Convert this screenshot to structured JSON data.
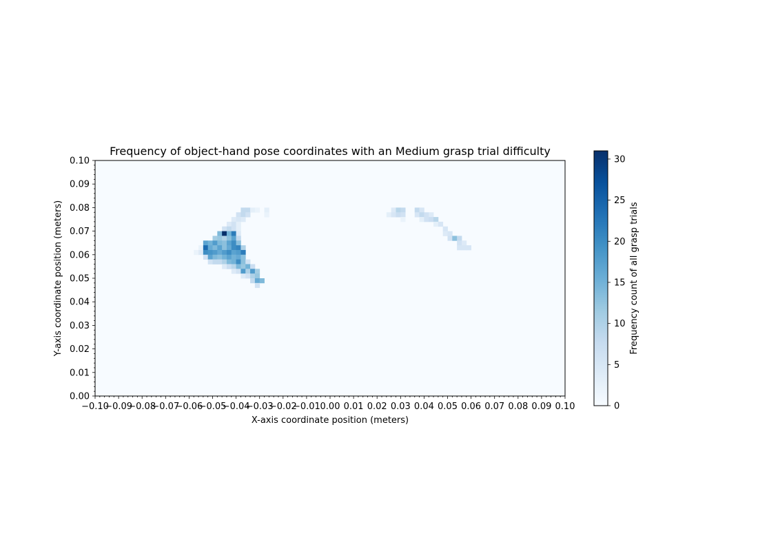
{
  "chart_data": {
    "type": "heatmap",
    "title": "Frequency of object-hand pose coordinates with an Medium grasp trial difficulty",
    "xlabel": "X-axis coordinate position (meters)",
    "ylabel": "Y-axis coordinate position (meters)",
    "xlim": [
      -0.1,
      0.1
    ],
    "ylim": [
      0.0,
      0.1
    ],
    "bin_size": 0.002,
    "x_ticks": [
      "−0.10",
      "−0.09",
      "−0.08",
      "−0.07",
      "−0.06",
      "−0.05",
      "−0.04",
      "−0.03",
      "−0.02",
      "−0.01",
      "0.00",
      "0.01",
      "0.02",
      "0.03",
      "0.04",
      "0.05",
      "0.06",
      "0.07",
      "0.08",
      "0.09",
      "0.10"
    ],
    "y_ticks": [
      "0.00",
      "0.01",
      "0.02",
      "0.03",
      "0.04",
      "0.05",
      "0.06",
      "0.07",
      "0.08",
      "0.09",
      "0.10"
    ],
    "colorbar": {
      "label": "Frequency count of all grasp trials",
      "range": [
        0,
        31
      ],
      "ticks": [
        "0",
        "5",
        "10",
        "15",
        "20",
        "25",
        "30"
      ],
      "colormap": "Blues"
    },
    "cells": [
      [
        -0.038,
        0.078,
        8
      ],
      [
        -0.036,
        0.078,
        8
      ],
      [
        -0.034,
        0.078,
        3
      ],
      [
        -0.032,
        0.078,
        2
      ],
      [
        -0.028,
        0.078,
        3
      ],
      [
        -0.04,
        0.076,
        6
      ],
      [
        -0.038,
        0.076,
        8
      ],
      [
        -0.036,
        0.076,
        6
      ],
      [
        -0.028,
        0.076,
        2
      ],
      [
        -0.042,
        0.074,
        4
      ],
      [
        -0.04,
        0.074,
        5
      ],
      [
        -0.038,
        0.074,
        4
      ],
      [
        -0.044,
        0.072,
        4
      ],
      [
        -0.042,
        0.072,
        6
      ],
      [
        -0.04,
        0.072,
        3
      ],
      [
        -0.046,
        0.07,
        6
      ],
      [
        -0.044,
        0.07,
        8
      ],
      [
        -0.042,
        0.07,
        6
      ],
      [
        -0.04,
        0.07,
        3
      ],
      [
        -0.048,
        0.068,
        14
      ],
      [
        -0.046,
        0.068,
        31
      ],
      [
        -0.044,
        0.068,
        15
      ],
      [
        -0.042,
        0.068,
        22
      ],
      [
        -0.04,
        0.068,
        4
      ],
      [
        -0.05,
        0.066,
        11
      ],
      [
        -0.048,
        0.066,
        12
      ],
      [
        -0.046,
        0.066,
        10
      ],
      [
        -0.044,
        0.066,
        13
      ],
      [
        -0.042,
        0.066,
        17
      ],
      [
        -0.04,
        0.066,
        8
      ],
      [
        -0.054,
        0.064,
        17
      ],
      [
        -0.052,
        0.064,
        15
      ],
      [
        -0.05,
        0.064,
        18
      ],
      [
        -0.048,
        0.064,
        14
      ],
      [
        -0.046,
        0.064,
        13
      ],
      [
        -0.044,
        0.064,
        17
      ],
      [
        -0.042,
        0.064,
        20
      ],
      [
        -0.04,
        0.064,
        13
      ],
      [
        -0.056,
        0.062,
        2
      ],
      [
        -0.054,
        0.062,
        24
      ],
      [
        -0.052,
        0.062,
        16
      ],
      [
        -0.05,
        0.062,
        14
      ],
      [
        -0.048,
        0.062,
        17
      ],
      [
        -0.046,
        0.062,
        13
      ],
      [
        -0.044,
        0.062,
        16
      ],
      [
        -0.042,
        0.062,
        20
      ],
      [
        -0.04,
        0.062,
        21
      ],
      [
        -0.038,
        0.062,
        10
      ],
      [
        -0.058,
        0.06,
        2
      ],
      [
        -0.056,
        0.06,
        4
      ],
      [
        -0.054,
        0.06,
        20
      ],
      [
        -0.052,
        0.06,
        19
      ],
      [
        -0.05,
        0.06,
        18
      ],
      [
        -0.048,
        0.06,
        16
      ],
      [
        -0.046,
        0.06,
        18
      ],
      [
        -0.044,
        0.06,
        20
      ],
      [
        -0.042,
        0.06,
        17
      ],
      [
        -0.04,
        0.06,
        18
      ],
      [
        -0.038,
        0.06,
        22
      ],
      [
        -0.054,
        0.058,
        6
      ],
      [
        -0.052,
        0.058,
        17
      ],
      [
        -0.05,
        0.058,
        14
      ],
      [
        -0.048,
        0.058,
        13
      ],
      [
        -0.046,
        0.058,
        15
      ],
      [
        -0.044,
        0.058,
        17
      ],
      [
        -0.042,
        0.058,
        15
      ],
      [
        -0.04,
        0.058,
        16
      ],
      [
        -0.038,
        0.058,
        13
      ],
      [
        -0.052,
        0.056,
        6
      ],
      [
        -0.05,
        0.056,
        8
      ],
      [
        -0.048,
        0.056,
        8
      ],
      [
        -0.046,
        0.056,
        10
      ],
      [
        -0.044,
        0.056,
        14
      ],
      [
        -0.042,
        0.056,
        15
      ],
      [
        -0.04,
        0.056,
        20
      ],
      [
        -0.038,
        0.056,
        13
      ],
      [
        -0.036,
        0.056,
        6
      ],
      [
        -0.046,
        0.054,
        4
      ],
      [
        -0.044,
        0.054,
        7
      ],
      [
        -0.042,
        0.054,
        9
      ],
      [
        -0.04,
        0.054,
        14
      ],
      [
        -0.038,
        0.054,
        12
      ],
      [
        -0.036,
        0.054,
        15
      ],
      [
        -0.034,
        0.054,
        7
      ],
      [
        -0.042,
        0.052,
        4
      ],
      [
        -0.04,
        0.052,
        6
      ],
      [
        -0.038,
        0.052,
        18
      ],
      [
        -0.036,
        0.052,
        10
      ],
      [
        -0.034,
        0.052,
        18
      ],
      [
        -0.032,
        0.052,
        11
      ],
      [
        -0.038,
        0.05,
        4
      ],
      [
        -0.036,
        0.05,
        6
      ],
      [
        -0.034,
        0.05,
        10
      ],
      [
        -0.032,
        0.05,
        12
      ],
      [
        -0.034,
        0.048,
        8
      ],
      [
        -0.032,
        0.048,
        16
      ],
      [
        -0.03,
        0.048,
        14
      ],
      [
        -0.032,
        0.046,
        6
      ],
      [
        0.026,
        0.078,
        4
      ],
      [
        0.028,
        0.078,
        9
      ],
      [
        0.03,
        0.078,
        8
      ],
      [
        0.036,
        0.078,
        8
      ],
      [
        0.038,
        0.078,
        5
      ],
      [
        0.024,
        0.076,
        3
      ],
      [
        0.026,
        0.076,
        5
      ],
      [
        0.028,
        0.076,
        7
      ],
      [
        0.03,
        0.076,
        6
      ],
      [
        0.036,
        0.076,
        5
      ],
      [
        0.038,
        0.076,
        8
      ],
      [
        0.04,
        0.076,
        6
      ],
      [
        0.042,
        0.076,
        4
      ],
      [
        0.03,
        0.074,
        2
      ],
      [
        0.038,
        0.074,
        3
      ],
      [
        0.04,
        0.074,
        6
      ],
      [
        0.042,
        0.074,
        7
      ],
      [
        0.044,
        0.074,
        9
      ],
      [
        0.044,
        0.072,
        3
      ],
      [
        0.046,
        0.072,
        5
      ],
      [
        0.048,
        0.07,
        5
      ],
      [
        0.048,
        0.068,
        4
      ],
      [
        0.05,
        0.068,
        5
      ],
      [
        0.05,
        0.066,
        6
      ],
      [
        0.052,
        0.066,
        13
      ],
      [
        0.054,
        0.066,
        8
      ],
      [
        0.054,
        0.064,
        6
      ],
      [
        0.056,
        0.064,
        4
      ],
      [
        0.054,
        0.062,
        5
      ],
      [
        0.056,
        0.062,
        5
      ],
      [
        0.058,
        0.062,
        5
      ]
    ]
  }
}
